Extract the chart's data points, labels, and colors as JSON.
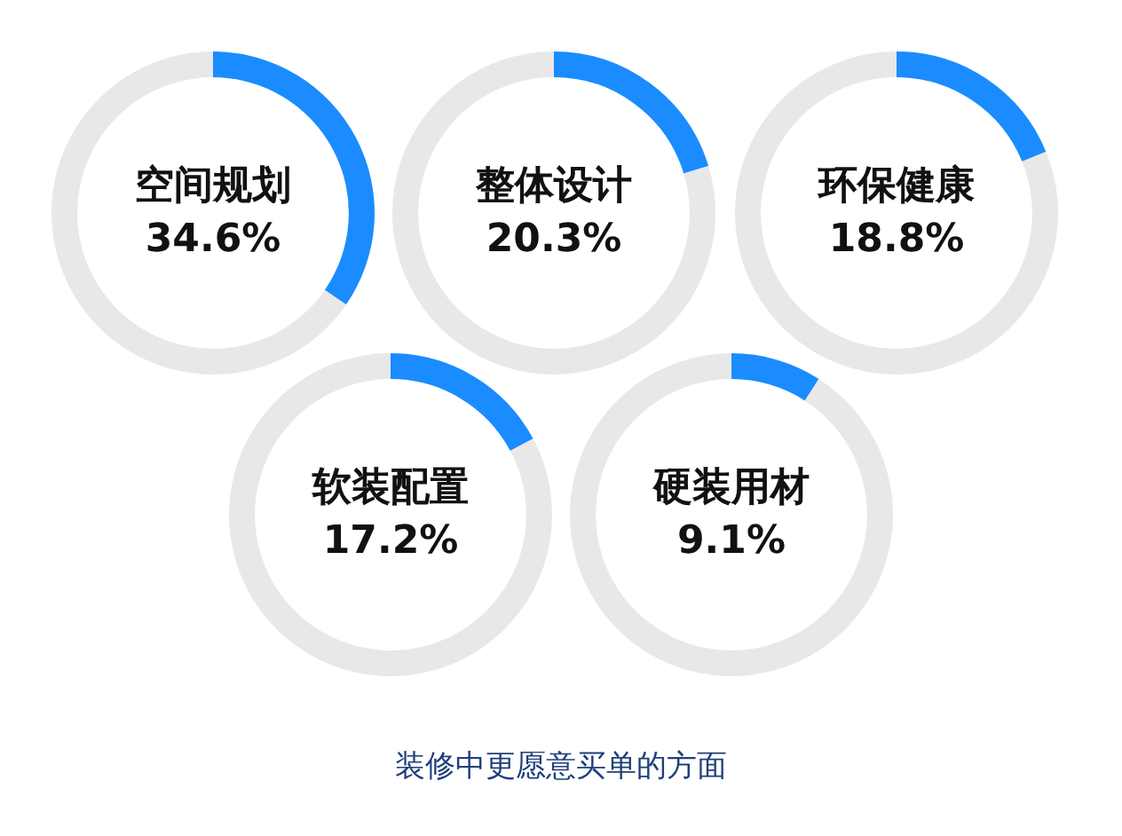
{
  "chart_data": [
    {
      "type": "donut",
      "categories": [
        "空间规划",
        null
      ],
      "values": [
        34.6,
        65.4
      ],
      "colors": [
        "#1a8cff",
        "#e8e8e8"
      ],
      "value_labels": [
        "34.6%",
        null
      ]
    },
    {
      "type": "donut",
      "categories": [
        "整体设计",
        null
      ],
      "values": [
        20.3,
        79.7
      ],
      "colors": [
        "#1a8cff",
        "#e8e8e8"
      ],
      "value_labels": [
        "20.3%",
        null
      ]
    },
    {
      "type": "donut",
      "categories": [
        "环保健康",
        null
      ],
      "values": [
        18.8,
        81.2
      ],
      "colors": [
        "#1a8cff",
        "#e8e8e8"
      ],
      "value_labels": [
        "18.8%",
        null
      ]
    },
    {
      "type": "donut",
      "categories": [
        "软装配置",
        null
      ],
      "values": [
        17.2,
        82.8
      ],
      "colors": [
        "#1a8cff",
        "#e8e8e8"
      ],
      "value_labels": [
        "17.2%",
        null
      ]
    },
    {
      "type": "donut",
      "categories": [
        "硬装用材",
        null
      ],
      "values": [
        9.1,
        90.9
      ],
      "colors": [
        "#1a8cff",
        "#e8e8e8"
      ],
      "value_labels": [
        "9.1%",
        null
      ]
    },
    {
      "type": "other",
      "title": "装修中更愿意买单的方面"
    }
  ]
}
